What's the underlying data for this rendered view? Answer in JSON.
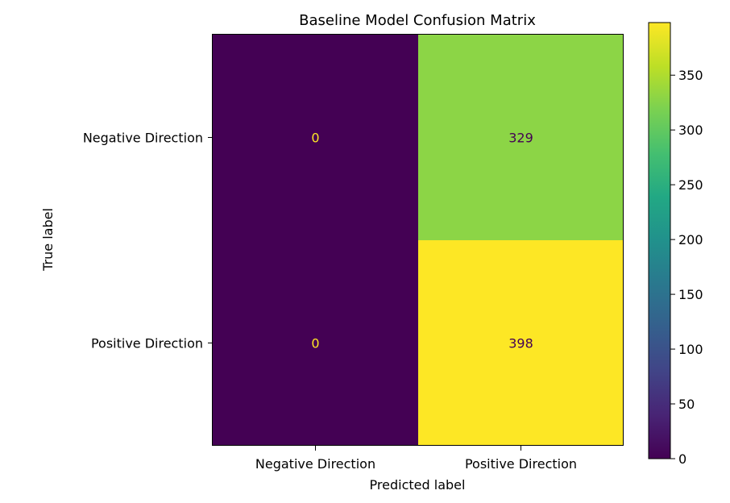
{
  "chart_data": {
    "type": "heatmap",
    "title": "Baseline Model Confusion Matrix",
    "xlabel": "Predicted label",
    "ylabel": "True label",
    "x_categories": [
      "Negative Direction",
      "Positive Direction"
    ],
    "y_categories": [
      "Negative Direction",
      "Positive Direction"
    ],
    "values": [
      [
        0,
        329
      ],
      [
        0,
        398
      ]
    ],
    "colormap": "viridis",
    "colorbar": {
      "min": 0,
      "max": 398,
      "ticks": [
        0,
        50,
        100,
        150,
        200,
        250,
        300,
        350
      ]
    },
    "grid": false
  }
}
